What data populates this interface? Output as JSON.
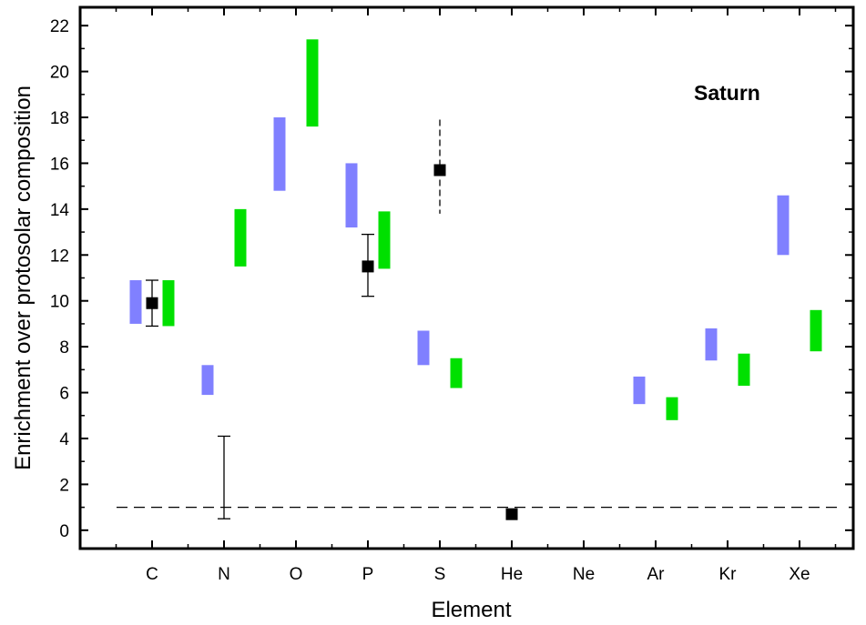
{
  "chart_data": {
    "type": "scatter",
    "xlabel": "Element",
    "ylabel": "Enrichment over protosolar composition",
    "ylim": [
      -0.8,
      22.8
    ],
    "yticks": [
      0,
      2,
      4,
      6,
      8,
      10,
      12,
      14,
      16,
      18,
      20,
      22
    ],
    "categories": [
      "C",
      "N",
      "O",
      "P",
      "S",
      "He",
      "Ne",
      "Ar",
      "Kr",
      "Xe"
    ],
    "annotation": "Saturn",
    "reference_line": {
      "y": 1,
      "style": "dashed"
    },
    "colors": {
      "model_a": "#8080ff",
      "model_b": "#00e000",
      "observed": "#000000"
    },
    "model_a_ranges": [
      {
        "category": "C",
        "low": 9.0,
        "high": 10.9
      },
      {
        "category": "N",
        "low": 5.9,
        "high": 7.2
      },
      {
        "category": "O",
        "low": 14.8,
        "high": 18.0
      },
      {
        "category": "P",
        "low": 13.2,
        "high": 16.0
      },
      {
        "category": "S",
        "low": 7.2,
        "high": 8.7
      },
      {
        "category": "Ar",
        "low": 5.5,
        "high": 6.7
      },
      {
        "category": "Kr",
        "low": 7.4,
        "high": 8.8
      },
      {
        "category": "Xe",
        "low": 12.0,
        "high": 14.6
      }
    ],
    "model_b_ranges": [
      {
        "category": "C",
        "low": 8.9,
        "high": 10.9
      },
      {
        "category": "N",
        "low": 11.5,
        "high": 14.0
      },
      {
        "category": "O",
        "low": 17.6,
        "high": 21.4
      },
      {
        "category": "P",
        "low": 11.4,
        "high": 13.9
      },
      {
        "category": "S",
        "low": 6.2,
        "high": 7.5
      },
      {
        "category": "Ar",
        "low": 4.8,
        "high": 5.8
      },
      {
        "category": "Kr",
        "low": 6.3,
        "high": 7.7
      },
      {
        "category": "Xe",
        "low": 7.8,
        "high": 9.6
      }
    ],
    "observed": [
      {
        "category": "C",
        "value": 9.9,
        "err_low": 8.9,
        "err_high": 10.9,
        "err_style": "solid",
        "marker": true
      },
      {
        "category": "N",
        "value": null,
        "err_low": 0.5,
        "err_high": 4.1,
        "err_style": "solid",
        "marker": false
      },
      {
        "category": "P",
        "value": 11.5,
        "err_low": 10.2,
        "err_high": 12.9,
        "err_style": "solid",
        "marker": true
      },
      {
        "category": "S",
        "value": 15.7,
        "err_low": 13.8,
        "err_high": 17.9,
        "err_style": "dashed",
        "marker": true
      },
      {
        "category": "He",
        "value": 0.7,
        "err_low": null,
        "err_high": null,
        "err_style": "solid",
        "marker": true
      }
    ]
  }
}
